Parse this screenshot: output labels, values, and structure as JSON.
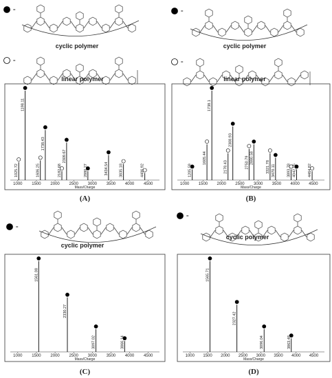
{
  "chart_data": [
    {
      "type": "stem",
      "panel": "(A)",
      "x_label": "Mass/Charge",
      "xlim": [
        800,
        4800
      ],
      "xticks": [
        1000,
        1500,
        2000,
        2500,
        3000,
        3500,
        4000,
        4500
      ],
      "series": [
        {
          "name": "cyclic polymer",
          "marker": "filled",
          "color": "#000000",
          "x": [
            1198.11,
            1738.43,
            2309.67,
            2880.27,
            3434.54
          ],
          "values": [
            100,
            56,
            42,
            10,
            28
          ]
        },
        {
          "name": "linear polymer",
          "marker": "open",
          "color": "#000000",
          "x": [
            1025.72,
            1606.25,
            2182.68,
            3835.18,
            4406.92
          ],
          "values": [
            20,
            22,
            10,
            18,
            8
          ]
        }
      ]
    },
    {
      "type": "stem",
      "panel": "(B)",
      "x_label": "Mass/Charge",
      "xlim": [
        800,
        4800
      ],
      "xticks": [
        1000,
        1500,
        2000,
        2500,
        3000,
        3500,
        4000,
        4500
      ],
      "series": [
        {
          "name": "cyclic polymer",
          "marker": "filled",
          "color": "#000000",
          "x": [
            1205.59,
            1738.1,
            2308.93,
            2880.58,
            3470.11,
            4042.05
          ],
          "values": [
            12,
            100,
            60,
            40,
            25,
            12
          ]
        },
        {
          "name": "linear polymer",
          "marker": "open",
          "color": "#000000",
          "x": [
            1605.44,
            2178.43,
            2750.79,
            3321.78,
            3893.78,
            4464.82
          ],
          "values": [
            40,
            30,
            35,
            30,
            12,
            10
          ]
        }
      ]
    },
    {
      "type": "stem",
      "panel": "(C)",
      "x_label": "Mass/Charge",
      "xlim": [
        800,
        4800
      ],
      "xticks": [
        1000,
        1500,
        2000,
        2500,
        3000,
        3500,
        4000,
        4500
      ],
      "series": [
        {
          "name": "cyclic polymer",
          "marker": "filled",
          "color": "#000000",
          "x": [
            1561.08,
            2330.27,
            3097.02,
            3866.14
          ],
          "values": [
            100,
            60,
            25,
            12
          ]
        }
      ]
    },
    {
      "type": "stem",
      "panel": "(D)",
      "x_label": "Mass/Charge",
      "xlim": [
        800,
        4800
      ],
      "xticks": [
        1000,
        1500,
        2000,
        2500,
        3000,
        3500,
        4000,
        4500
      ],
      "series": [
        {
          "name": "cyclic polymer",
          "marker": "filled",
          "color": "#000000",
          "x": [
            1565.71,
            2327.42,
            3096.04,
            3863.48
          ],
          "values": [
            100,
            52,
            25,
            15
          ]
        }
      ]
    }
  ]
}
